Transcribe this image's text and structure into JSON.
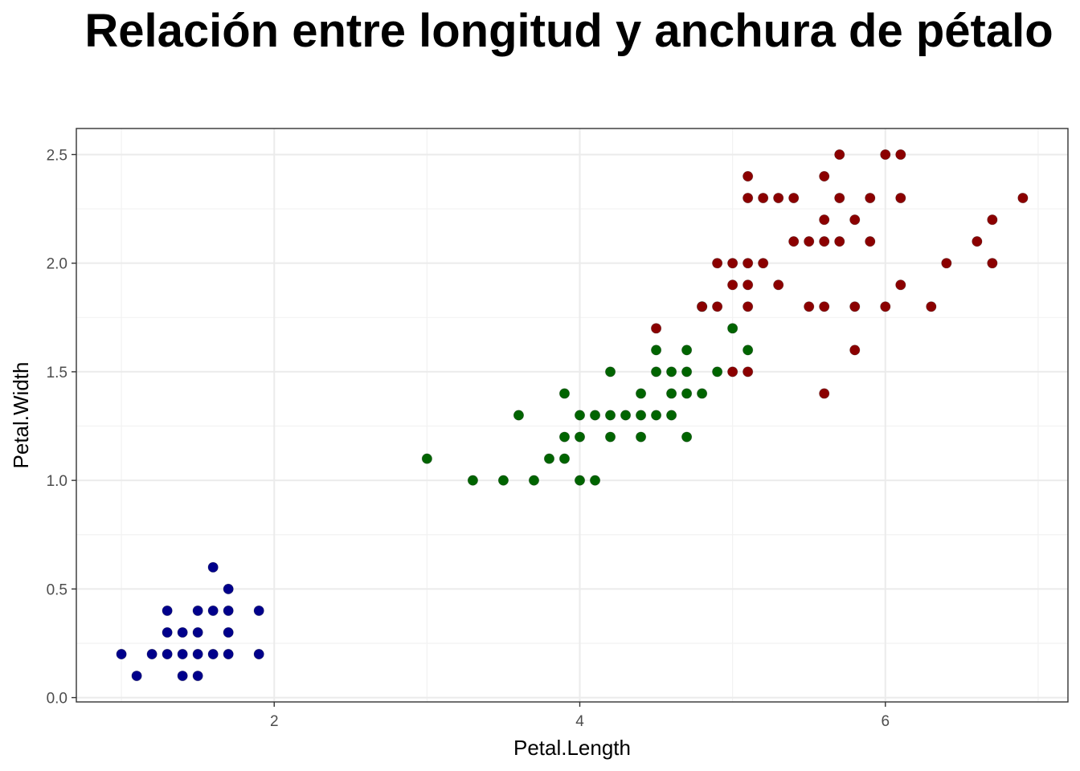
{
  "chart_data": {
    "type": "scatter",
    "title": "Relación entre longitud y anchura de pétalo",
    "xlabel": "Petal.Length",
    "ylabel": "Petal.Width",
    "xlim": [
      0.705,
      7.195
    ],
    "ylim": [
      -0.02,
      2.62
    ],
    "x_ticks": [
      2,
      4,
      6
    ],
    "y_ticks": [
      0.0,
      0.5,
      1.0,
      1.5,
      2.0,
      2.5
    ],
    "x_tick_labels": [
      "2",
      "4",
      "6"
    ],
    "y_tick_labels": [
      "0.0",
      "0.5",
      "1.0",
      "1.5",
      "2.0",
      "2.5"
    ],
    "grid": true,
    "legend": "none",
    "series": [
      {
        "color": "#00008B",
        "points": [
          [
            1.0,
            0.2
          ],
          [
            1.1,
            0.1
          ],
          [
            1.2,
            0.2
          ],
          [
            1.3,
            0.2
          ],
          [
            1.3,
            0.3
          ],
          [
            1.3,
            0.4
          ],
          [
            1.4,
            0.1
          ],
          [
            1.4,
            0.2
          ],
          [
            1.4,
            0.3
          ],
          [
            1.5,
            0.1
          ],
          [
            1.5,
            0.2
          ],
          [
            1.5,
            0.3
          ],
          [
            1.5,
            0.4
          ],
          [
            1.6,
            0.2
          ],
          [
            1.6,
            0.4
          ],
          [
            1.6,
            0.6
          ],
          [
            1.7,
            0.2
          ],
          [
            1.7,
            0.3
          ],
          [
            1.7,
            0.4
          ],
          [
            1.7,
            0.5
          ],
          [
            1.9,
            0.2
          ],
          [
            1.9,
            0.4
          ]
        ]
      },
      {
        "color": "#006400",
        "points": [
          [
            3.0,
            1.1
          ],
          [
            3.3,
            1.0
          ],
          [
            3.5,
            1.0
          ],
          [
            3.6,
            1.3
          ],
          [
            3.7,
            1.0
          ],
          [
            3.8,
            1.1
          ],
          [
            3.9,
            1.1
          ],
          [
            3.9,
            1.2
          ],
          [
            3.9,
            1.4
          ],
          [
            4.0,
            1.0
          ],
          [
            4.0,
            1.2
          ],
          [
            4.0,
            1.3
          ],
          [
            4.1,
            1.0
          ],
          [
            4.1,
            1.3
          ],
          [
            4.2,
            1.2
          ],
          [
            4.2,
            1.3
          ],
          [
            4.2,
            1.5
          ],
          [
            4.3,
            1.3
          ],
          [
            4.4,
            1.2
          ],
          [
            4.4,
            1.3
          ],
          [
            4.4,
            1.4
          ],
          [
            4.5,
            1.3
          ],
          [
            4.5,
            1.5
          ],
          [
            4.5,
            1.6
          ],
          [
            4.6,
            1.3
          ],
          [
            4.6,
            1.4
          ],
          [
            4.6,
            1.5
          ],
          [
            4.7,
            1.2
          ],
          [
            4.7,
            1.4
          ],
          [
            4.7,
            1.5
          ],
          [
            4.7,
            1.6
          ],
          [
            4.8,
            1.4
          ],
          [
            4.8,
            1.8
          ],
          [
            4.9,
            1.5
          ],
          [
            5.0,
            1.7
          ],
          [
            5.1,
            1.6
          ]
        ]
      },
      {
        "color": "#8B0000",
        "points": [
          [
            4.5,
            1.7
          ],
          [
            4.8,
            1.8
          ],
          [
            4.9,
            1.8
          ],
          [
            4.9,
            2.0
          ],
          [
            5.0,
            1.5
          ],
          [
            5.0,
            1.9
          ],
          [
            5.0,
            2.0
          ],
          [
            5.1,
            1.5
          ],
          [
            5.1,
            1.8
          ],
          [
            5.1,
            1.9
          ],
          [
            5.1,
            2.0
          ],
          [
            5.1,
            2.3
          ],
          [
            5.1,
            2.4
          ],
          [
            5.2,
            2.0
          ],
          [
            5.2,
            2.3
          ],
          [
            5.3,
            1.9
          ],
          [
            5.3,
            2.3
          ],
          [
            5.4,
            2.1
          ],
          [
            5.4,
            2.3
          ],
          [
            5.5,
            1.8
          ],
          [
            5.5,
            2.1
          ],
          [
            5.6,
            1.4
          ],
          [
            5.6,
            1.8
          ],
          [
            5.6,
            2.1
          ],
          [
            5.6,
            2.2
          ],
          [
            5.6,
            2.4
          ],
          [
            5.7,
            2.1
          ],
          [
            5.7,
            2.3
          ],
          [
            5.7,
            2.5
          ],
          [
            5.8,
            1.6
          ],
          [
            5.8,
            1.8
          ],
          [
            5.8,
            2.2
          ],
          [
            5.9,
            2.1
          ],
          [
            5.9,
            2.3
          ],
          [
            6.0,
            1.8
          ],
          [
            6.0,
            2.5
          ],
          [
            6.1,
            1.9
          ],
          [
            6.1,
            2.3
          ],
          [
            6.1,
            2.5
          ],
          [
            6.3,
            1.8
          ],
          [
            6.4,
            2.0
          ],
          [
            6.6,
            2.1
          ],
          [
            6.7,
            2.0
          ],
          [
            6.7,
            2.2
          ],
          [
            6.9,
            2.3
          ]
        ]
      }
    ]
  }
}
